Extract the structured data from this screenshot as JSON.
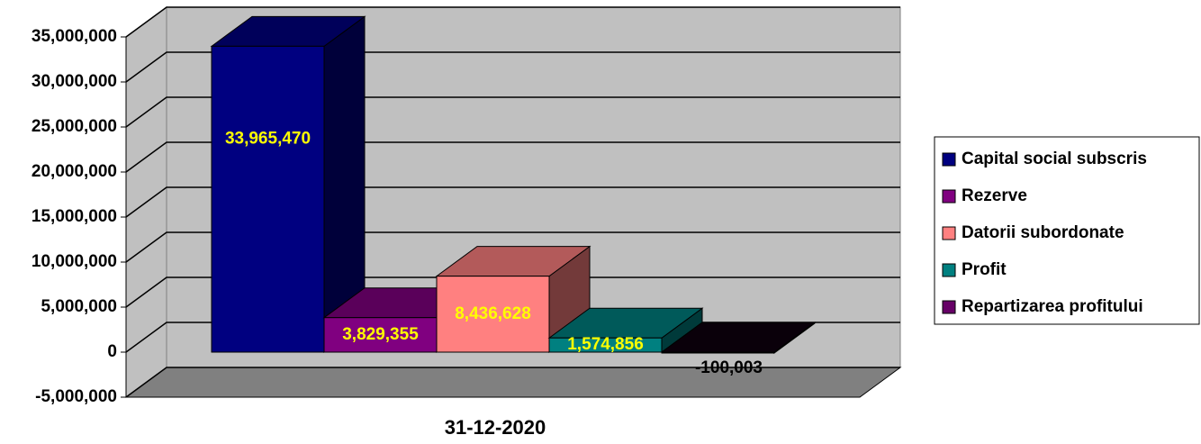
{
  "chart_data": {
    "type": "bar3d",
    "categories": [
      "31-12-2020"
    ],
    "series": [
      {
        "name": "Capital social subscris",
        "color": "#000080",
        "values": [
          33965470
        ],
        "value_labels": [
          "33,965,470"
        ]
      },
      {
        "name": "Rezerve",
        "color": "#800080",
        "values": [
          3829355
        ],
        "value_labels": [
          "3,829,355"
        ]
      },
      {
        "name": "Datorii subordonate",
        "color": "#ff8080",
        "values": [
          8436628
        ],
        "value_labels": [
          "8,436,628"
        ]
      },
      {
        "name": "Profit",
        "color": "#008080",
        "values": [
          1574856
        ],
        "value_labels": [
          "1,574,856"
        ]
      },
      {
        "name": "Repartizarea profitului",
        "color": "#660066",
        "values": [
          -100003
        ],
        "value_labels": [
          "-100,003"
        ]
      }
    ],
    "ylim": [
      -5000000,
      35000000
    ],
    "yticks": [
      {
        "value": -5000000,
        "label": "-5,000,000"
      },
      0,
      {
        "value": 5000000,
        "label": "5,000,000"
      },
      {
        "value": 10000000,
        "label": "10,000,000"
      },
      {
        "value": 15000000,
        "label": "15,000,000"
      },
      {
        "value": 20000000,
        "label": "20,000,000"
      },
      {
        "value": 25000000,
        "label": "25,000,000"
      },
      {
        "value": 30000000,
        "label": "30,000,000"
      },
      {
        "value": 35000000,
        "label": "35,000,000"
      }
    ],
    "grid": true,
    "legend": "right"
  }
}
